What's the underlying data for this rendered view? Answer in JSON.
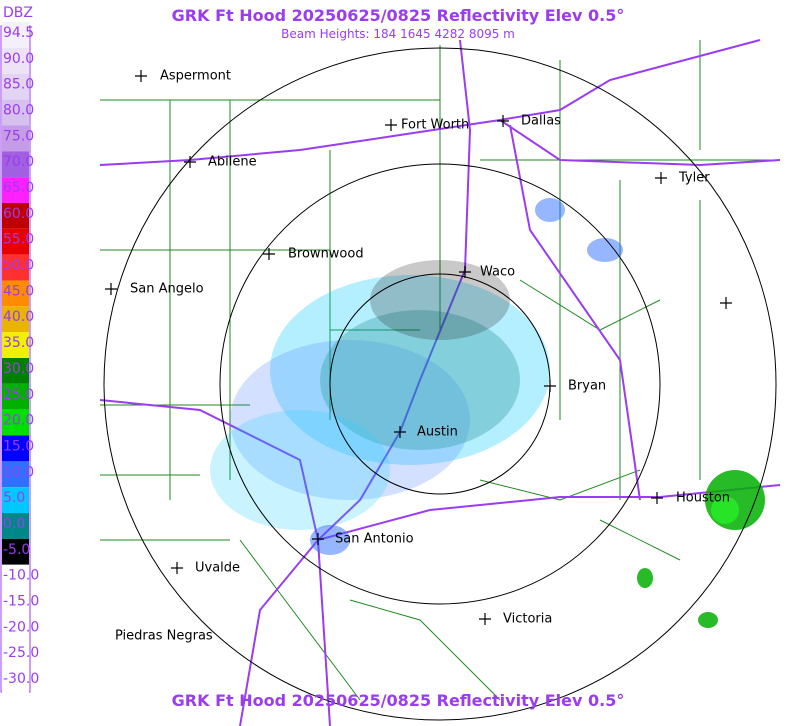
{
  "header": {
    "title": "GRK Ft Hood 20250625/0825 Reflectivity Elev 0.5°",
    "subtitle": "Beam Heights: 184 1645 4282 8095 m"
  },
  "footer": {
    "title": "GRK Ft Hood 20250625/0825 Reflectivity Elev 0.5°"
  },
  "legend": {
    "unit": "DBZ",
    "labels": [
      "94.5",
      "90.0",
      "85.0",
      "80.0",
      "75.0",
      "70.0",
      "65.0",
      "60.0",
      "55.0",
      "50.0",
      "45.0",
      "40.0",
      "35.0",
      "30.0",
      "25.0",
      "20.0",
      "15.0",
      "10.0",
      "5.0",
      "0.0",
      "-5.0",
      "-10.0",
      "-15.0",
      "-20.0",
      "-25.0",
      "-30.0"
    ],
    "colors": [
      "#f4f0fa",
      "#ece4f6",
      "#e2d4f2",
      "#d6c0ee",
      "#c49ce8",
      "#a060e0",
      "#ff20ff",
      "#c00000",
      "#e80000",
      "#ff3030",
      "#ff8c00",
      "#e8b400",
      "#f0f000",
      "#008000",
      "#00b000",
      "#00e000",
      "#0000ff",
      "#3070ff",
      "#00c8ff",
      "#008888",
      "#000000",
      "#ffffff",
      "#ffffff",
      "#ffffff",
      "#ffffff",
      "#ffffff"
    ]
  },
  "cities": [
    "Aspermont",
    "Abilene",
    "Fort Worth",
    "Dallas",
    "Tyler",
    "Brownwood",
    "Waco",
    "San Angelo",
    "Bryan",
    "Austin",
    "Houston",
    "San Antonio",
    "Uvalde",
    "Victoria",
    "Piedras Negras"
  ]
}
